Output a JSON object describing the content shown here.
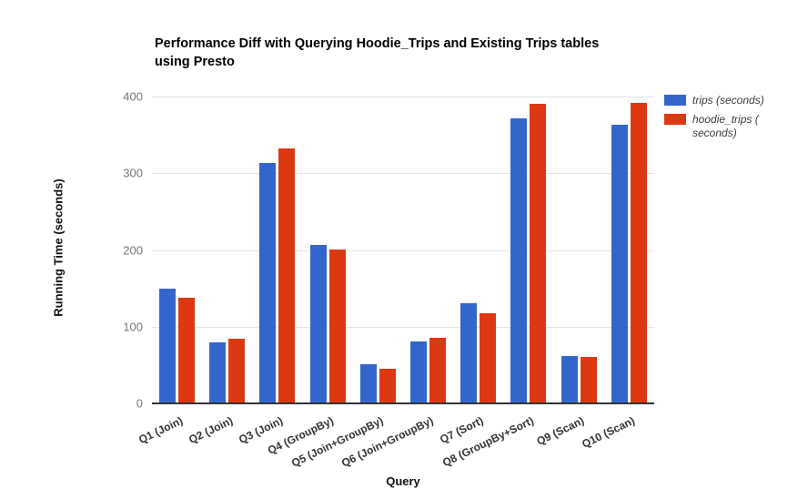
{
  "header": {
    "title_line1": "Performance Diff with Querying Hoodie_Trips and Existing Trips tables",
    "title_line2": "using Presto"
  },
  "chart_data": {
    "type": "bar",
    "title": "Performance Diff with Querying Hoodie_Trips and Existing Trips tables using Presto",
    "xlabel": "Query",
    "ylabel": "Running Time (seconds)",
    "ylim": [
      0,
      400
    ],
    "yticks": [
      0,
      100,
      200,
      300,
      400
    ],
    "grid": true,
    "legend_position": "right",
    "categories": [
      "Q1 (Join)",
      "Q2 (Join)",
      "Q3 (Join)",
      "Q4 (GroupBy)",
      "Q5 (Join+GroupBy)",
      "Q6 (Join+GroupBy)",
      "Q7 (Sort)",
      "Q8 (GroupBy+Sort)",
      "Q9 (Scan)",
      "Q10 (Scan)"
    ],
    "series": [
      {
        "id": "trips",
        "name": "trips (seconds)",
        "color": "#3366CC",
        "values": [
          150,
          80,
          313,
          207,
          51,
          81,
          131,
          371,
          62,
          363
        ]
      },
      {
        "id": "hoodie_trips",
        "name": "hoodie_trips (seconds)",
        "color": "#DC3912",
        "values": [
          138,
          84,
          332,
          201,
          45,
          85,
          117,
          390,
          60,
          392
        ]
      }
    ]
  },
  "legend": {
    "items": [
      {
        "color": "#3366CC",
        "label_lines": [
          "trips (seconds)"
        ]
      },
      {
        "color": "#DC3912",
        "label_lines": [
          "hoodie_trips (",
          "seconds)"
        ]
      }
    ]
  }
}
